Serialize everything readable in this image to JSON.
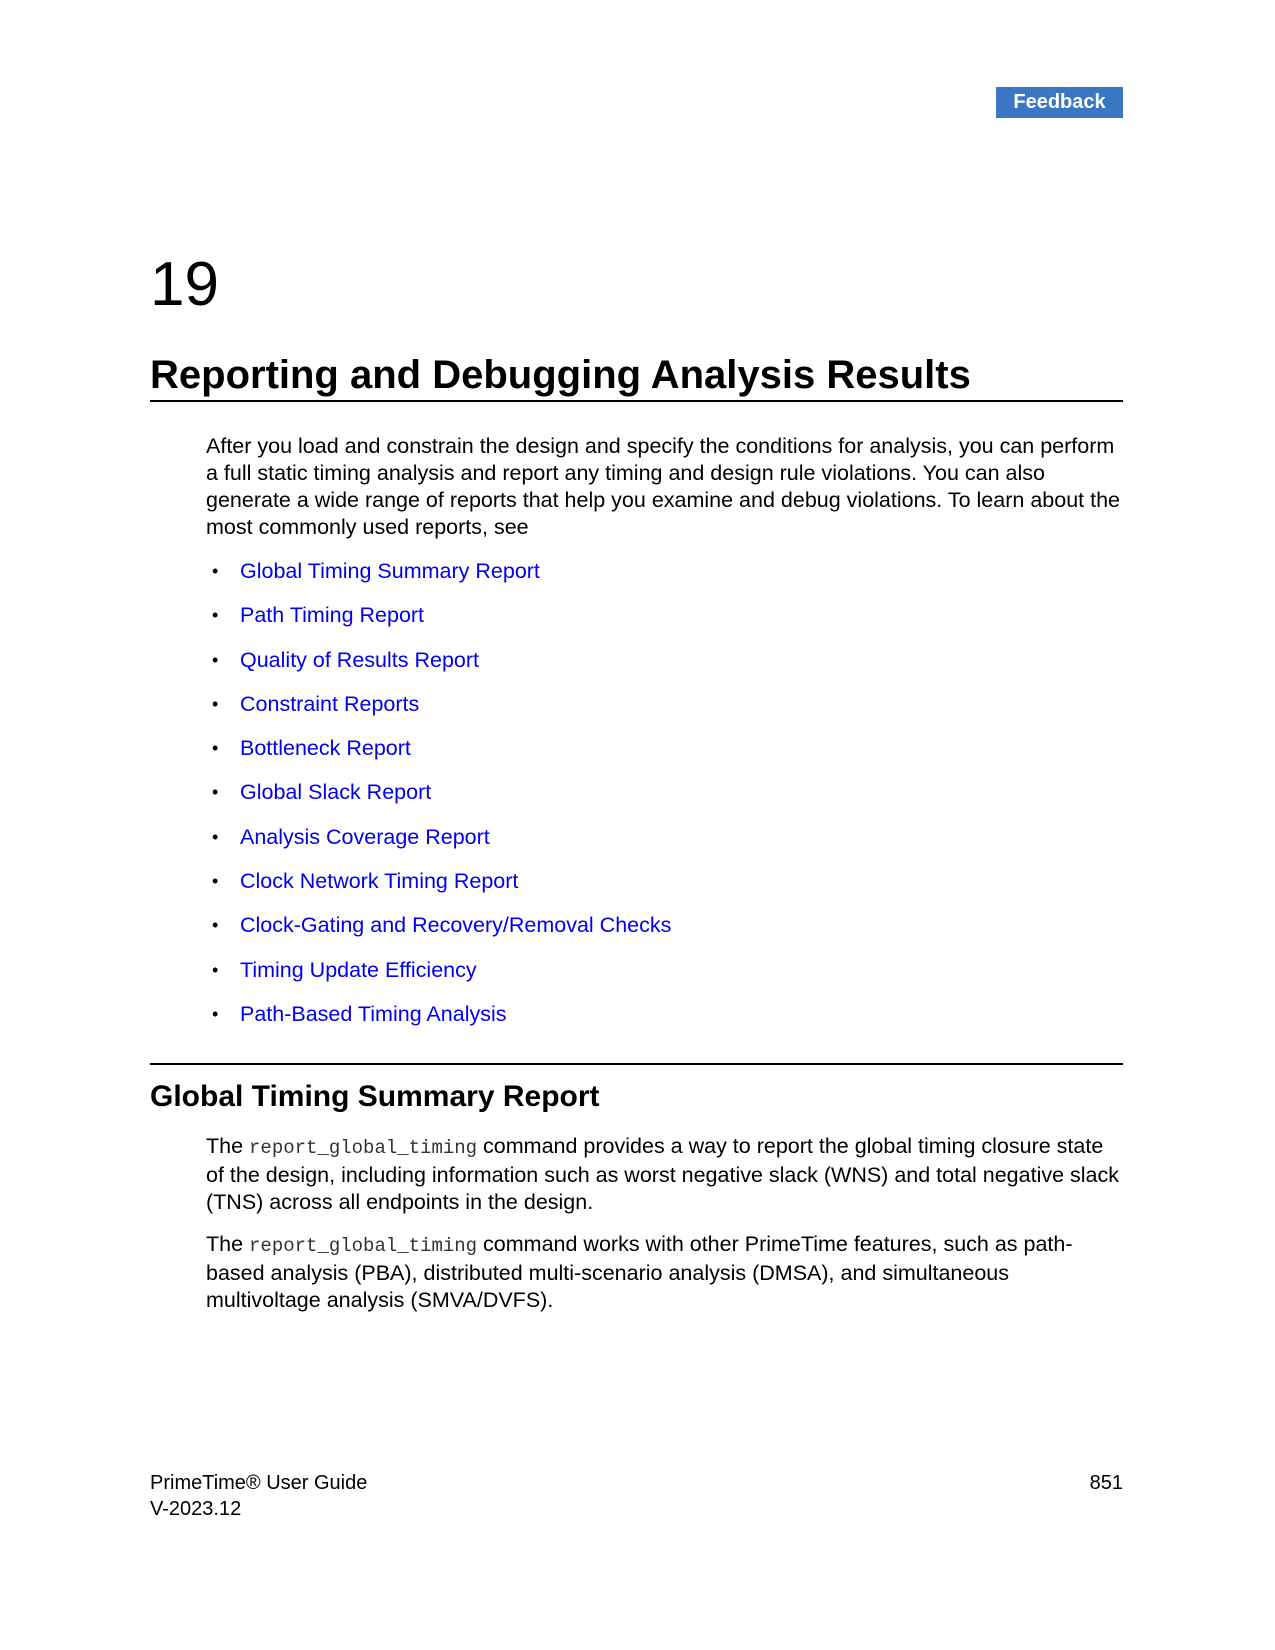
{
  "header": {
    "feedback_label": "Feedback"
  },
  "chapter": {
    "number": "19",
    "title": "Reporting and Debugging Analysis Results",
    "intro": "After you load and constrain the design and specify the conditions for analysis, you can perform a full static timing analysis and report any timing and design rule violations. You can also generate a wide range of reports that help you examine and debug violations. To learn about the most commonly used reports, see"
  },
  "toc": {
    "bullet": "•",
    "items": [
      "Global Timing Summary Report",
      "Path Timing Report",
      "Quality of Results Report",
      "Constraint Reports",
      "Bottleneck Report",
      "Global Slack Report",
      "Analysis Coverage Report",
      "Clock Network Timing Report",
      "Clock-Gating and Recovery/Removal Checks",
      "Timing Update Efficiency",
      "Path-Based Timing Analysis"
    ]
  },
  "section": {
    "title": "Global Timing Summary Report",
    "para1": {
      "before": "The ",
      "code": "report_global_timing",
      "after": " command provides a way to report the global timing closure state of the design, including information such as worst negative slack (WNS) and total negative slack (TNS) across all endpoints in the design."
    },
    "para2": {
      "before": "The ",
      "code": "report_global_timing",
      "after": " command works with other PrimeTime features, such as path-based analysis (PBA), distributed multi-scenario analysis (DMSA), and simultaneous multivoltage analysis (SMVA/DVFS)."
    }
  },
  "footer": {
    "guide_title": "PrimeTime® User Guide",
    "version": "V-2023.12",
    "page_number": "851"
  }
}
